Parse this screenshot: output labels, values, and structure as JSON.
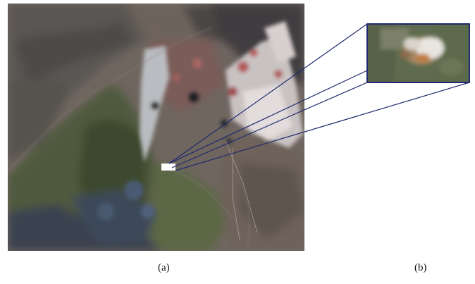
{
  "figure": {
    "panel_a": {
      "caption": "(a)",
      "content": "satellite-terrain-image"
    },
    "panel_b": {
      "caption": "(b)",
      "content": "magnified-inset"
    },
    "colors": {
      "callout_lines": "#1f2a6e",
      "marker": "#ffffff",
      "background": "#ffffff"
    }
  }
}
